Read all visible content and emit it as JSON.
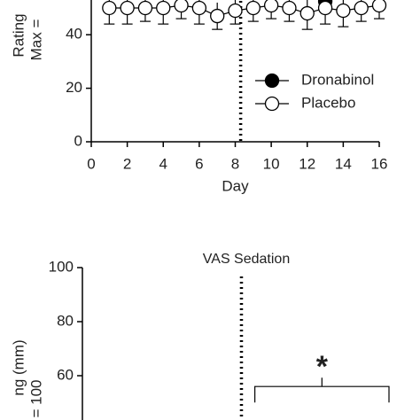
{
  "chart_data": [
    {
      "type": "line",
      "xlabel": "Day",
      "ylabel_fragments": [
        "Rating",
        "Max ="
      ],
      "xlim": [
        0,
        16
      ],
      "xticks": [
        0,
        2,
        4,
        6,
        8,
        10,
        12,
        14,
        16
      ],
      "ylim": [
        0,
        53
      ],
      "yticks": [
        0,
        20,
        40
      ],
      "phase_line_x": 8.3,
      "legend": "upper-right",
      "series": [
        {
          "name": "Dronabinol",
          "color": "#000000",
          "filled": true,
          "x": [
            13
          ],
          "values": [
            52.5
          ],
          "errors": [
            3
          ]
        },
        {
          "name": "Placebo",
          "color": "#000000",
          "filled": false,
          "x": [
            1,
            2,
            3,
            4,
            5,
            6,
            7,
            8,
            9,
            10,
            11,
            12,
            13,
            14,
            15,
            16
          ],
          "values": [
            50,
            50,
            50,
            50,
            51,
            50,
            47,
            49,
            50,
            51,
            50,
            48,
            50,
            49,
            50,
            51
          ],
          "errors": [
            6,
            6,
            5,
            6,
            5,
            6,
            5,
            5,
            5,
            5,
            5,
            6,
            6,
            6,
            5,
            5
          ]
        }
      ]
    },
    {
      "type": "line",
      "title": "VAS Sedation",
      "ylabel_fragments": [
        "ng (mm)",
        "= 100"
      ],
      "xlim": [
        0,
        16
      ],
      "ylim": [
        43.6,
        100
      ],
      "yticks": [
        60,
        80,
        100
      ],
      "phase_line_x": 8.3,
      "annotation": {
        "text": "*",
        "x_range": [
          9,
          16
        ],
        "y": 56
      }
    }
  ]
}
